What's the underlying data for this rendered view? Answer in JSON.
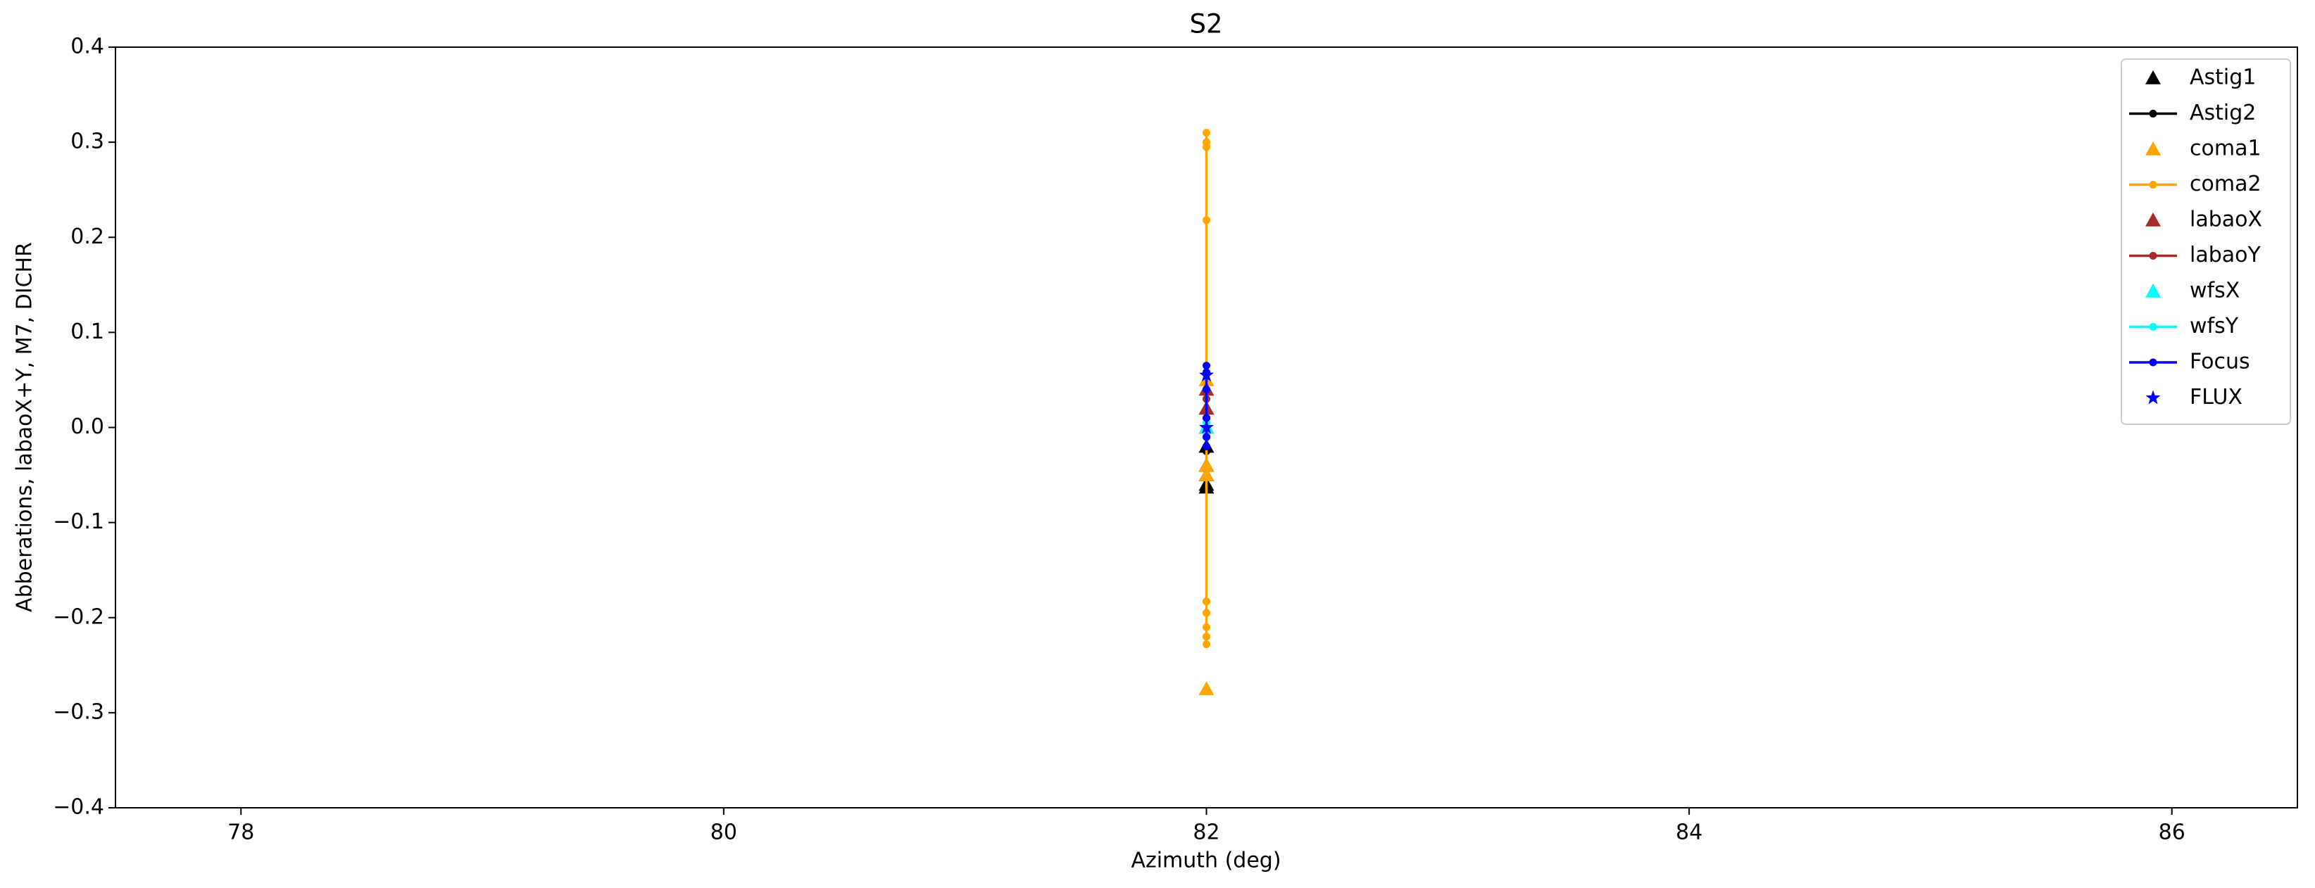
{
  "chart_data": {
    "type": "scatter",
    "title": "S2",
    "x_label": "Azimuth (deg)",
    "y_label": "Abberations, labaoX+Y, M7, DICHR",
    "xlim": [
      77.48,
      86.52
    ],
    "ylim": [
      -0.4,
      0.4
    ],
    "xticks": [
      78,
      80,
      82,
      84,
      86
    ],
    "yticks": [
      {
        "value": -0.4,
        "label": "−0.4"
      },
      {
        "value": -0.3,
        "label": "−0.3"
      },
      {
        "value": -0.2,
        "label": "−0.2"
      },
      {
        "value": -0.1,
        "label": "−0.1"
      },
      {
        "value": 0,
        "label": "0.0"
      },
      0.1,
      0.2,
      0.3,
      0.4
    ],
    "legend": "upper right",
    "series": [
      {
        "name": "Astig1",
        "color": "#000000",
        "marker": "triangle",
        "line": false,
        "x": [
          82,
          82,
          82,
          82,
          82
        ],
        "values": [
          -0.063,
          -0.06,
          -0.05,
          -0.04,
          -0.02
        ]
      },
      {
        "name": "Astig2",
        "color": "#000000",
        "marker": "dot",
        "line": true,
        "x": [
          82,
          82,
          82,
          82,
          82
        ],
        "values": [
          -0.025,
          -0.01,
          0.0,
          0.01,
          -0.02
        ]
      },
      {
        "name": "coma1",
        "color": "#ffa500",
        "marker": "triangle",
        "line": false,
        "x": [
          82,
          82,
          82,
          82,
          82
        ],
        "values": [
          -0.275,
          -0.05,
          -0.04,
          0.02,
          0.05
        ]
      },
      {
        "name": "coma2",
        "color": "#ffa500",
        "marker": "dot",
        "line": true,
        "x": [
          82,
          82,
          82,
          82,
          82,
          82,
          82,
          82,
          82,
          82
        ],
        "values": [
          0.31,
          0.3,
          0.295,
          0.218,
          0.05,
          -0.183,
          -0.195,
          -0.21,
          -0.22,
          -0.228
        ]
      },
      {
        "name": "labaoX",
        "color": "#a52a2a",
        "marker": "triangle",
        "line": false,
        "x": [
          82,
          82,
          82
        ],
        "values": [
          0.04,
          0.02,
          0.0
        ]
      },
      {
        "name": "labaoY",
        "color": "#a52a2a",
        "marker": "dot",
        "line": true,
        "x": [
          82,
          82
        ],
        "values": [
          0.03,
          0.01
        ]
      },
      {
        "name": "wfsX",
        "color": "#00ffff",
        "marker": "triangle",
        "line": false,
        "x": [
          82
        ],
        "values": [
          0.0
        ]
      },
      {
        "name": "wfsY",
        "color": "#00ffff",
        "marker": "dot",
        "line": true,
        "x": [
          82,
          82
        ],
        "values": [
          0.005,
          -0.005
        ]
      },
      {
        "name": "Focus",
        "color": "#0000ff",
        "marker": "dot",
        "line": true,
        "x": [
          82,
          82,
          82,
          82,
          82,
          82
        ],
        "values": [
          0.065,
          0.058,
          0.04,
          0.01,
          -0.01,
          -0.02
        ]
      },
      {
        "name": "FLUX",
        "color": "#0000ff",
        "marker": "star",
        "line": false,
        "x": [
          82,
          82
        ],
        "values": [
          0.055,
          0.0
        ]
      }
    ]
  }
}
